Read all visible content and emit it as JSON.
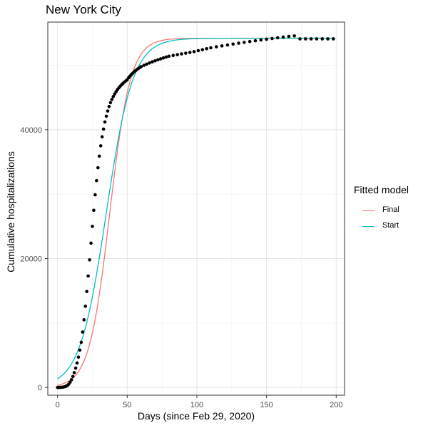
{
  "chart_data": {
    "type": "scatter",
    "title": "New York City",
    "xlabel": "Days (since Feb 29, 2020)",
    "ylabel": "Cumulative hospitalizations",
    "xlim": [
      -7,
      206
    ],
    "ylim": [
      -1200,
      56700
    ],
    "x_ticks": [
      0,
      50,
      100,
      150,
      200
    ],
    "y_ticks": [
      0,
      20000,
      40000
    ],
    "x_tick_labels": [
      "0",
      "50",
      "100",
      "150",
      "200"
    ],
    "y_tick_labels": [
      "0",
      "20000",
      "40000"
    ],
    "grid": true,
    "legend_position": "right",
    "legend_title": "Fitted model",
    "points": {
      "x": [
        0,
        1,
        2,
        3,
        4,
        5,
        6,
        7,
        8,
        9,
        10,
        11,
        12,
        13,
        14,
        15,
        16,
        17,
        18,
        19,
        20,
        21,
        22,
        23,
        24,
        25,
        26,
        27,
        28,
        29,
        30,
        31,
        32,
        33,
        34,
        35,
        36,
        37,
        38,
        39,
        40,
        41,
        42,
        43,
        44,
        45,
        46,
        47,
        48,
        49,
        50,
        51,
        52,
        53,
        54,
        55,
        56,
        57,
        58,
        59,
        60,
        62,
        64,
        66,
        68,
        70,
        72,
        74,
        76,
        78,
        80,
        83,
        86,
        89,
        92,
        95,
        98,
        101,
        104,
        107,
        110,
        114,
        118,
        122,
        126,
        130,
        134,
        138,
        142,
        146,
        150,
        154,
        158,
        162,
        166,
        170,
        174,
        178,
        182,
        186,
        190,
        194,
        198
      ],
      "y": [
        0,
        10,
        20,
        30,
        50,
        100,
        180,
        300,
        500,
        800,
        1200,
        1700,
        2300,
        3000,
        3800,
        4700,
        5800,
        7000,
        8600,
        10500,
        12600,
        14900,
        17300,
        19800,
        22400,
        25000,
        27500,
        29900,
        32100,
        34100,
        35900,
        37500,
        38900,
        40100,
        41200,
        42100,
        42900,
        43600,
        44200,
        44700,
        45150,
        45550,
        45900,
        46220,
        46500,
        46760,
        46990,
        47200,
        47400,
        47580,
        47750,
        48060,
        48330,
        48570,
        48790,
        48990,
        49170,
        49340,
        49500,
        49650,
        49790,
        49990,
        50180,
        50360,
        50530,
        50690,
        50850,
        51000,
        51140,
        51280,
        51410,
        51530,
        51650,
        51770,
        51880,
        51990,
        52120,
        52270,
        52420,
        52570,
        52720,
        52870,
        53010,
        53150,
        53290,
        53430,
        53560,
        53690,
        53810,
        53930,
        54050,
        54160,
        54270,
        54380,
        54480,
        54570,
        54100,
        54100,
        54100,
        54100,
        54100,
        54100,
        54100
      ]
    },
    "series": [
      {
        "name": "Final",
        "color": "#F8766D",
        "model": "logistic",
        "K": 54200,
        "r": 0.135,
        "t0": 37.5
      },
      {
        "name": "Start",
        "color": "#00BFC4",
        "model": "logistic",
        "K": 54200,
        "r": 0.105,
        "t0": 35
      }
    ]
  }
}
